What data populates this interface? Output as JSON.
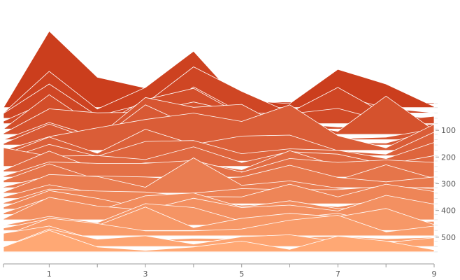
{
  "chart_data": {
    "type": "area",
    "subtype": "ridgeline",
    "title": "",
    "xlabel": "",
    "ylabel": "",
    "x_ticks": [
      1,
      3,
      5,
      7,
      9
    ],
    "y_ticks": [
      100,
      200,
      300,
      400,
      500
    ],
    "xlim": [
      0.05,
      9
    ],
    "ylim": [
      0,
      600
    ],
    "y_axis_position": "right",
    "y_axis_inverted": true,
    "grid": true,
    "color_range": [
      "#c93a1a",
      "#ffa874"
    ],
    "ridge_amplitude": 70,
    "x": [
      0.05,
      1,
      2,
      3,
      4,
      5,
      6,
      7,
      8,
      9
    ],
    "series": [
      {
        "y": 0,
        "values": [
          0.0,
          0.06,
          0.02,
          0.14,
          0.1,
          0.04,
          0.03,
          0.05,
          0.02,
          0.02
        ]
      },
      {
        "y": 15,
        "values": [
          0.0,
          1.56,
          0.62,
          0.4,
          0.98,
          0.15,
          0.08,
          0.78,
          0.48,
          0.02
        ]
      },
      {
        "y": 35,
        "values": [
          0.0,
          0.85,
          0.08,
          0.52,
          1.26,
          0.18,
          0.05,
          0.36,
          0.1,
          0.0
        ]
      },
      {
        "y": 55,
        "values": [
          0.1,
          0.7,
          0.05,
          0.3,
          1.05,
          0.55,
          0.12,
          0.63,
          0.08,
          0.0
        ]
      },
      {
        "y": 75,
        "values": [
          0.05,
          0.46,
          0.02,
          0.08,
          0.75,
          0.22,
          0.2,
          0.31,
          0.05,
          0.15
        ]
      },
      {
        "y": 95,
        "values": [
          0.0,
          0.7,
          0.04,
          0.6,
          0.83,
          0.28,
          0.12,
          0.04,
          0.05,
          0.1
        ]
      },
      {
        "y": 115,
        "values": [
          0.02,
          0.52,
          0.44,
          0.45,
          0.66,
          0.44,
          0.24,
          0.06,
          0.78,
          0.08
        ]
      },
      {
        "y": 135,
        "values": [
          0.0,
          0.35,
          0.05,
          0.86,
          0.66,
          0.72,
          0.2,
          0.02,
          0.05,
          0.22
        ]
      },
      {
        "y": 155,
        "values": [
          0.03,
          0.43,
          0.08,
          0.82,
          0.37,
          0.4,
          0.3,
          0.05,
          0.04,
          0.3
        ]
      },
      {
        "y": 175,
        "values": [
          0.0,
          0.28,
          0.46,
          0.63,
          0.76,
          0.59,
          0.93,
          0.3,
          0.05,
          0.53
        ]
      },
      {
        "y": 195,
        "values": [
          0.02,
          0.38,
          0.05,
          0.54,
          0.23,
          0.4,
          0.42,
          0.1,
          0.03,
          0.48
        ]
      },
      {
        "y": 215,
        "values": [
          0.03,
          0.34,
          0.1,
          0.4,
          0.42,
          0.15,
          0.25,
          0.22,
          0.05,
          0.38
        ]
      },
      {
        "y": 235,
        "values": [
          0.38,
          0.21,
          0.22,
          0.14,
          0.4,
          0.08,
          0.3,
          0.25,
          0.04,
          0.22
        ]
      },
      {
        "y": 255,
        "values": [
          0.03,
          0.42,
          0.05,
          0.18,
          0.19,
          0.04,
          0.43,
          0.12,
          0.03,
          0.15
        ]
      },
      {
        "y": 275,
        "values": [
          0.02,
          0.31,
          0.28,
          0.28,
          0.34,
          0.1,
          0.38,
          0.3,
          0.35,
          0.3
        ]
      },
      {
        "y": 295,
        "values": [
          0.04,
          0.38,
          0.06,
          0.06,
          0.12,
          0.06,
          0.16,
          0.05,
          0.36,
          0.08
        ]
      },
      {
        "y": 315,
        "values": [
          0.02,
          0.24,
          0.24,
          0.22,
          0.17,
          0.22,
          0.46,
          0.21,
          0.12,
          0.22
        ]
      },
      {
        "y": 335,
        "values": [
          0.02,
          0.38,
          0.34,
          0.12,
          0.72,
          0.16,
          0.25,
          0.1,
          0.05,
          0.12
        ]
      },
      {
        "y": 355,
        "values": [
          0.03,
          0.28,
          0.11,
          0.05,
          0.11,
          0.2,
          0.18,
          0.18,
          0.25,
          0.2
        ]
      },
      {
        "y": 375,
        "values": [
          0.02,
          0.3,
          0.26,
          0.24,
          0.15,
          0.14,
          0.4,
          0.14,
          0.4,
          0.25
        ]
      },
      {
        "y": 395,
        "values": [
          0.04,
          0.38,
          0.22,
          0.02,
          0.2,
          0.08,
          0.12,
          0.05,
          0.2,
          0.1
        ]
      },
      {
        "y": 415,
        "values": [
          0.03,
          0.34,
          0.08,
          0.38,
          0.44,
          0.15,
          0.28,
          0.12,
          0.12,
          0.18
        ]
      },
      {
        "y": 435,
        "values": [
          0.02,
          0.46,
          0.28,
          0.2,
          0.44,
          0.25,
          0.3,
          0.18,
          0.5,
          0.32
        ]
      },
      {
        "y": 455,
        "values": [
          0.0,
          0.18,
          0.05,
          0.44,
          0.36,
          0.08,
          0.15,
          0.24,
          0.05,
          0.08
        ]
      },
      {
        "y": 475,
        "values": [
          0.05,
          0.24,
          0.1,
          0.48,
          0.06,
          0.25,
          0.35,
          0.28,
          0.45,
          0.12
        ]
      },
      {
        "y": 495,
        "values": [
          0.0,
          0.36,
          0.25,
          0.1,
          0.1,
          0.14,
          0.32,
          0.42,
          0.08,
          0.2
        ]
      },
      {
        "y": 515,
        "values": [
          0.16,
          0.31,
          0.02,
          0.02,
          0.06,
          0.05,
          0.08,
          0.1,
          0.05,
          0.08
        ]
      },
      {
        "y": 535,
        "values": [
          0.0,
          0.36,
          0.15,
          0.22,
          0.05,
          0.2,
          0.24,
          0.1,
          0.08,
          0.18
        ]
      },
      {
        "y": 555,
        "values": [
          0.1,
          0.44,
          0.1,
          0.03,
          0.1,
          0.22,
          0.05,
          0.32,
          0.22,
          0.04
        ]
      }
    ]
  }
}
